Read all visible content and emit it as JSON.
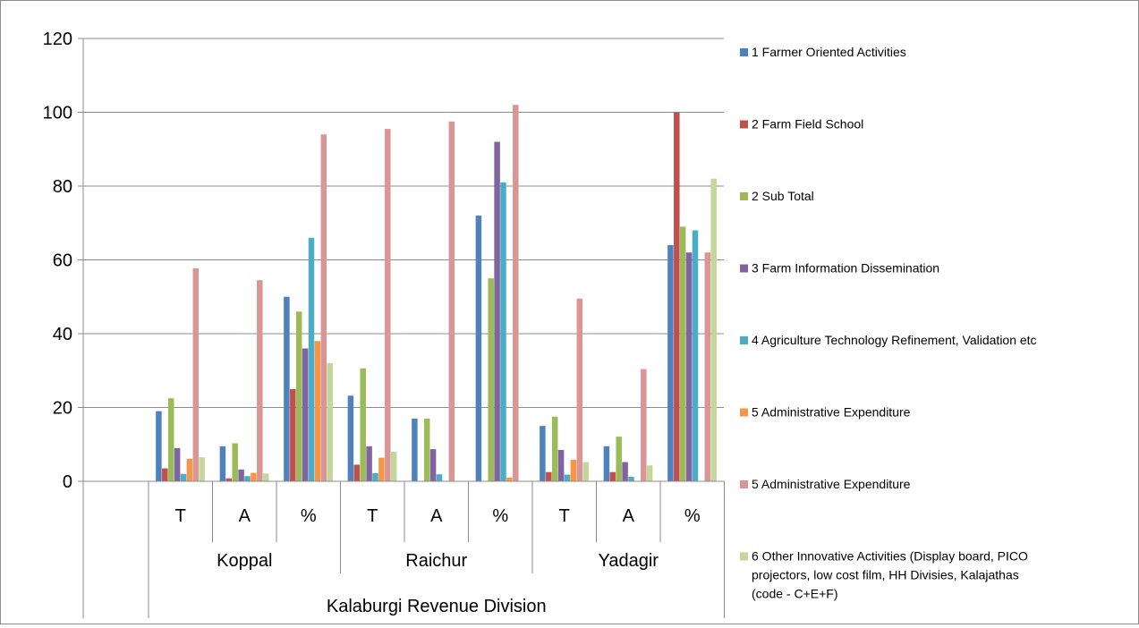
{
  "chart_data": {
    "type": "bar",
    "title": "",
    "xlabel": "",
    "ylabel": "",
    "ylim": [
      0,
      120
    ],
    "yticks": [
      0,
      20,
      40,
      60,
      80,
      100,
      120
    ],
    "grid": true,
    "legend_position": "right",
    "division_label": "Kalaburgi Revenue Division",
    "groups": [
      "Koppal",
      "Raichur",
      "Yadagir"
    ],
    "categories": [
      "T",
      "A",
      "%",
      "T",
      "A",
      "%",
      "T",
      "A",
      "%"
    ],
    "series": [
      {
        "name": "1 Farmer Oriented Activities",
        "color": "#4f81bd",
        "values": [
          19,
          9.5,
          50,
          23.2,
          17,
          72,
          15,
          9.5,
          64
        ]
      },
      {
        "name": "2 Farm Field School",
        "color": "#c0504d",
        "values": [
          3.5,
          0.8,
          25,
          4.5,
          0,
          0,
          2.5,
          2.5,
          100
        ]
      },
      {
        "name": "2 Sub Total",
        "color": "#9bbb59",
        "values": [
          22.5,
          10.3,
          46,
          30.6,
          17,
          55,
          17.5,
          12.1,
          69
        ]
      },
      {
        "name": "3 Farm Information Dissemination",
        "color": "#8064a2",
        "values": [
          9,
          3.2,
          36,
          9.5,
          8.7,
          92,
          8.5,
          5.2,
          62
        ]
      },
      {
        "name": "4 Agriculture Technology Refinement, Validation etc",
        "color": "#4bacc6",
        "values": [
          2,
          1.4,
          66,
          2.2,
          1.9,
          81,
          1.8,
          1.2,
          68
        ]
      },
      {
        "name": "5 Administrative Expenditure",
        "color": "#f79646",
        "values": [
          6.1,
          2.3,
          38,
          6.4,
          0,
          1,
          5.8,
          0,
          0
        ]
      },
      {
        "name": "5 Administrative Expenditure",
        "color": "#d99694",
        "values": [
          57.7,
          54.5,
          94,
          95.5,
          97.5,
          102,
          49.5,
          30.4,
          62
        ]
      },
      {
        "name": "6 Other Innovative Activities  (Display board, PICO projectors, low cost film, HH Divisies, Kalajathas (code - C+E+F)",
        "color": "#c3d69b",
        "values": [
          6.5,
          2.1,
          32,
          8,
          0,
          0,
          5.2,
          4.3,
          82
        ]
      }
    ]
  },
  "legend_lines": [
    [
      "1 Farmer Oriented Activities"
    ],
    [
      "2 Farm Field School"
    ],
    [
      "2 Sub Total"
    ],
    [
      "3 Farm Information Dissemination"
    ],
    [
      "4 Agriculture Technology Refinement, Validation etc"
    ],
    [
      "5 Administrative Expenditure"
    ],
    [
      "5 Administrative Expenditure"
    ],
    [
      "6 Other Innovative Activities  (Display board, PICO",
      "projectors, low cost film, HH Divisies, Kalajathas",
      "(code - C+E+F)"
    ]
  ]
}
